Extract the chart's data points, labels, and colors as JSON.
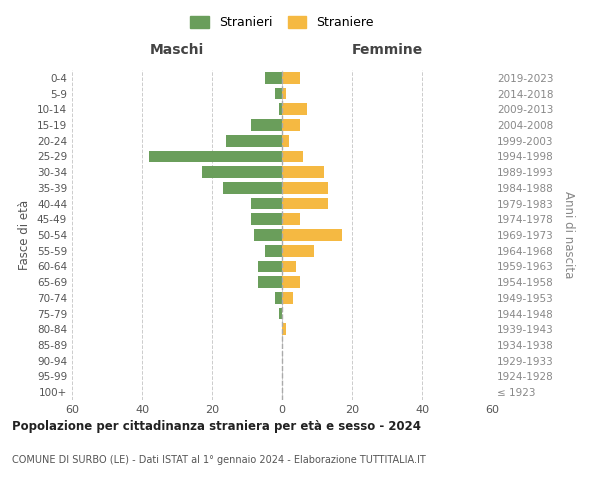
{
  "age_groups": [
    "100+",
    "95-99",
    "90-94",
    "85-89",
    "80-84",
    "75-79",
    "70-74",
    "65-69",
    "60-64",
    "55-59",
    "50-54",
    "45-49",
    "40-44",
    "35-39",
    "30-34",
    "25-29",
    "20-24",
    "15-19",
    "10-14",
    "5-9",
    "0-4"
  ],
  "birth_years": [
    "≤ 1923",
    "1924-1928",
    "1929-1933",
    "1934-1938",
    "1939-1943",
    "1944-1948",
    "1949-1953",
    "1954-1958",
    "1959-1963",
    "1964-1968",
    "1969-1973",
    "1974-1978",
    "1979-1983",
    "1984-1988",
    "1989-1993",
    "1994-1998",
    "1999-2003",
    "2004-2008",
    "2009-2013",
    "2014-2018",
    "2019-2023"
  ],
  "males": [
    0,
    0,
    0,
    0,
    0,
    1,
    2,
    7,
    7,
    5,
    8,
    9,
    9,
    17,
    23,
    38,
    16,
    9,
    1,
    2,
    5
  ],
  "females": [
    0,
    0,
    0,
    0,
    1,
    0,
    3,
    5,
    4,
    9,
    17,
    5,
    13,
    13,
    12,
    6,
    2,
    5,
    7,
    1,
    5
  ],
  "male_color": "#6a9e5b",
  "female_color": "#f5b942",
  "title": "Popolazione per cittadinanza straniera per età e sesso - 2024",
  "subtitle": "COMUNE DI SURBO (LE) - Dati ISTAT al 1° gennaio 2024 - Elaborazione TUTTITALIA.IT",
  "xlabel_left": "Maschi",
  "xlabel_right": "Femmine",
  "ylabel_left": "Fasce di età",
  "ylabel_right": "Anni di nascita",
  "legend_stranieri": "Stranieri",
  "legend_straniere": "Straniere",
  "xlim": 60,
  "background_color": "#ffffff",
  "grid_color": "#cccccc"
}
